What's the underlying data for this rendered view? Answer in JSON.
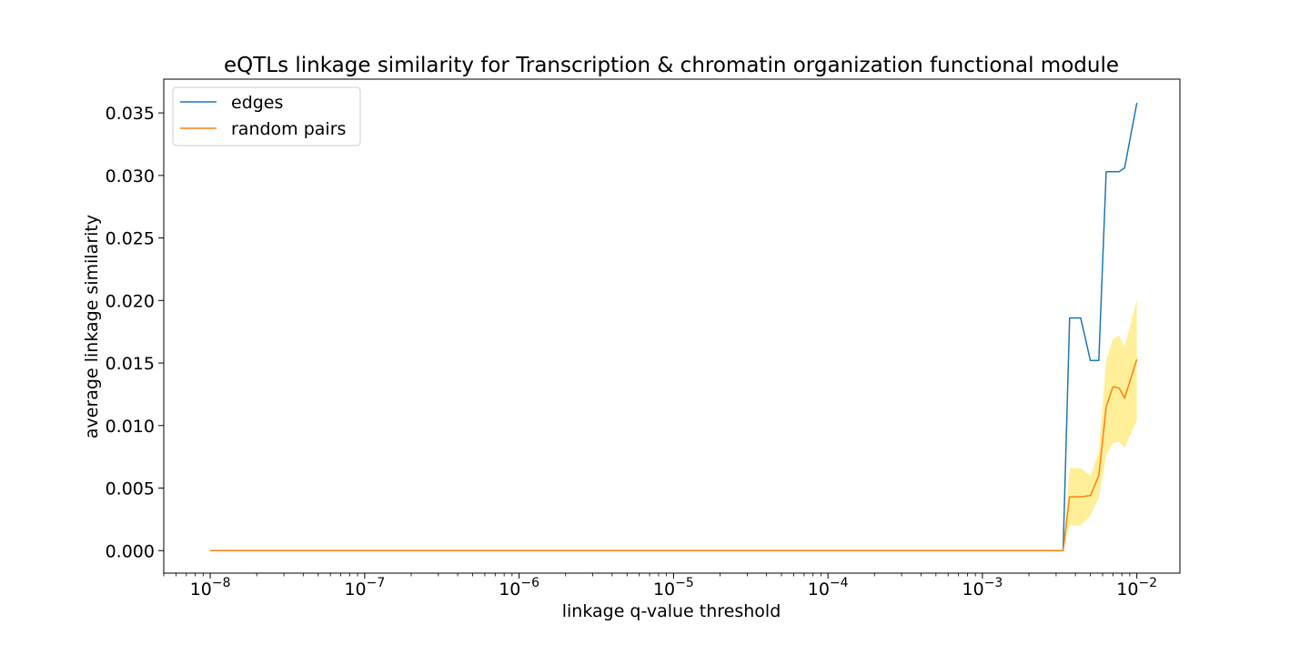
{
  "chart_data": {
    "type": "line",
    "title": "eQTLs linkage similarity for Transcription & chromatin organization functional module",
    "xlabel": "linkage q-value threshold",
    "ylabel": "average linkage similarity",
    "xscale": "log",
    "xlim": [
      5e-09,
      0.019
    ],
    "ylim": [
      -0.0018,
      0.0377
    ],
    "x_ticks": [
      {
        "value": 1e-08,
        "base": "10",
        "exp": "−8"
      },
      {
        "value": 1e-07,
        "base": "10",
        "exp": "−7"
      },
      {
        "value": 1e-06,
        "base": "10",
        "exp": "−6"
      },
      {
        "value": 1e-05,
        "base": "10",
        "exp": "−5"
      },
      {
        "value": 0.0001,
        "base": "10",
        "exp": "−4"
      },
      {
        "value": 0.001,
        "base": "10",
        "exp": "−3"
      },
      {
        "value": 0.01,
        "base": "10",
        "exp": "−2"
      }
    ],
    "y_ticks": [
      0.0,
      0.005,
      0.01,
      0.015,
      0.02,
      0.025,
      0.03,
      0.035
    ],
    "y_tick_labels": [
      "0.000",
      "0.005",
      "0.010",
      "0.015",
      "0.020",
      "0.025",
      "0.030",
      "0.035"
    ],
    "grid": false,
    "legend_position": "top-left",
    "x": [
      1e-08,
      0.00333,
      0.00367,
      0.00433,
      0.005,
      0.00567,
      0.00633,
      0.007,
      0.00767,
      0.00833,
      0.01
    ],
    "series": [
      {
        "name": "edges",
        "color": "#1f77b4",
        "values": [
          0.0,
          0.0,
          0.0186,
          0.0186,
          0.0152,
          0.0152,
          0.0303,
          0.0303,
          0.0303,
          0.0306,
          0.0358
        ]
      },
      {
        "name": "random pairs",
        "color": "#ff7f0e",
        "values": [
          0.0,
          0.0,
          0.0043,
          0.0043,
          0.0044,
          0.006,
          0.0115,
          0.0131,
          0.013,
          0.0122,
          0.0153
        ]
      }
    ],
    "band": {
      "color": "#ffd700",
      "opacity": 0.4,
      "lower": [
        0.0,
        0.0,
        0.002,
        0.002,
        0.0028,
        0.0042,
        0.0076,
        0.0086,
        0.0087,
        0.0082,
        0.0104
      ],
      "upper": [
        0.0,
        0.0,
        0.0066,
        0.0066,
        0.006,
        0.0079,
        0.0152,
        0.0169,
        0.0172,
        0.0163,
        0.0201
      ]
    }
  }
}
